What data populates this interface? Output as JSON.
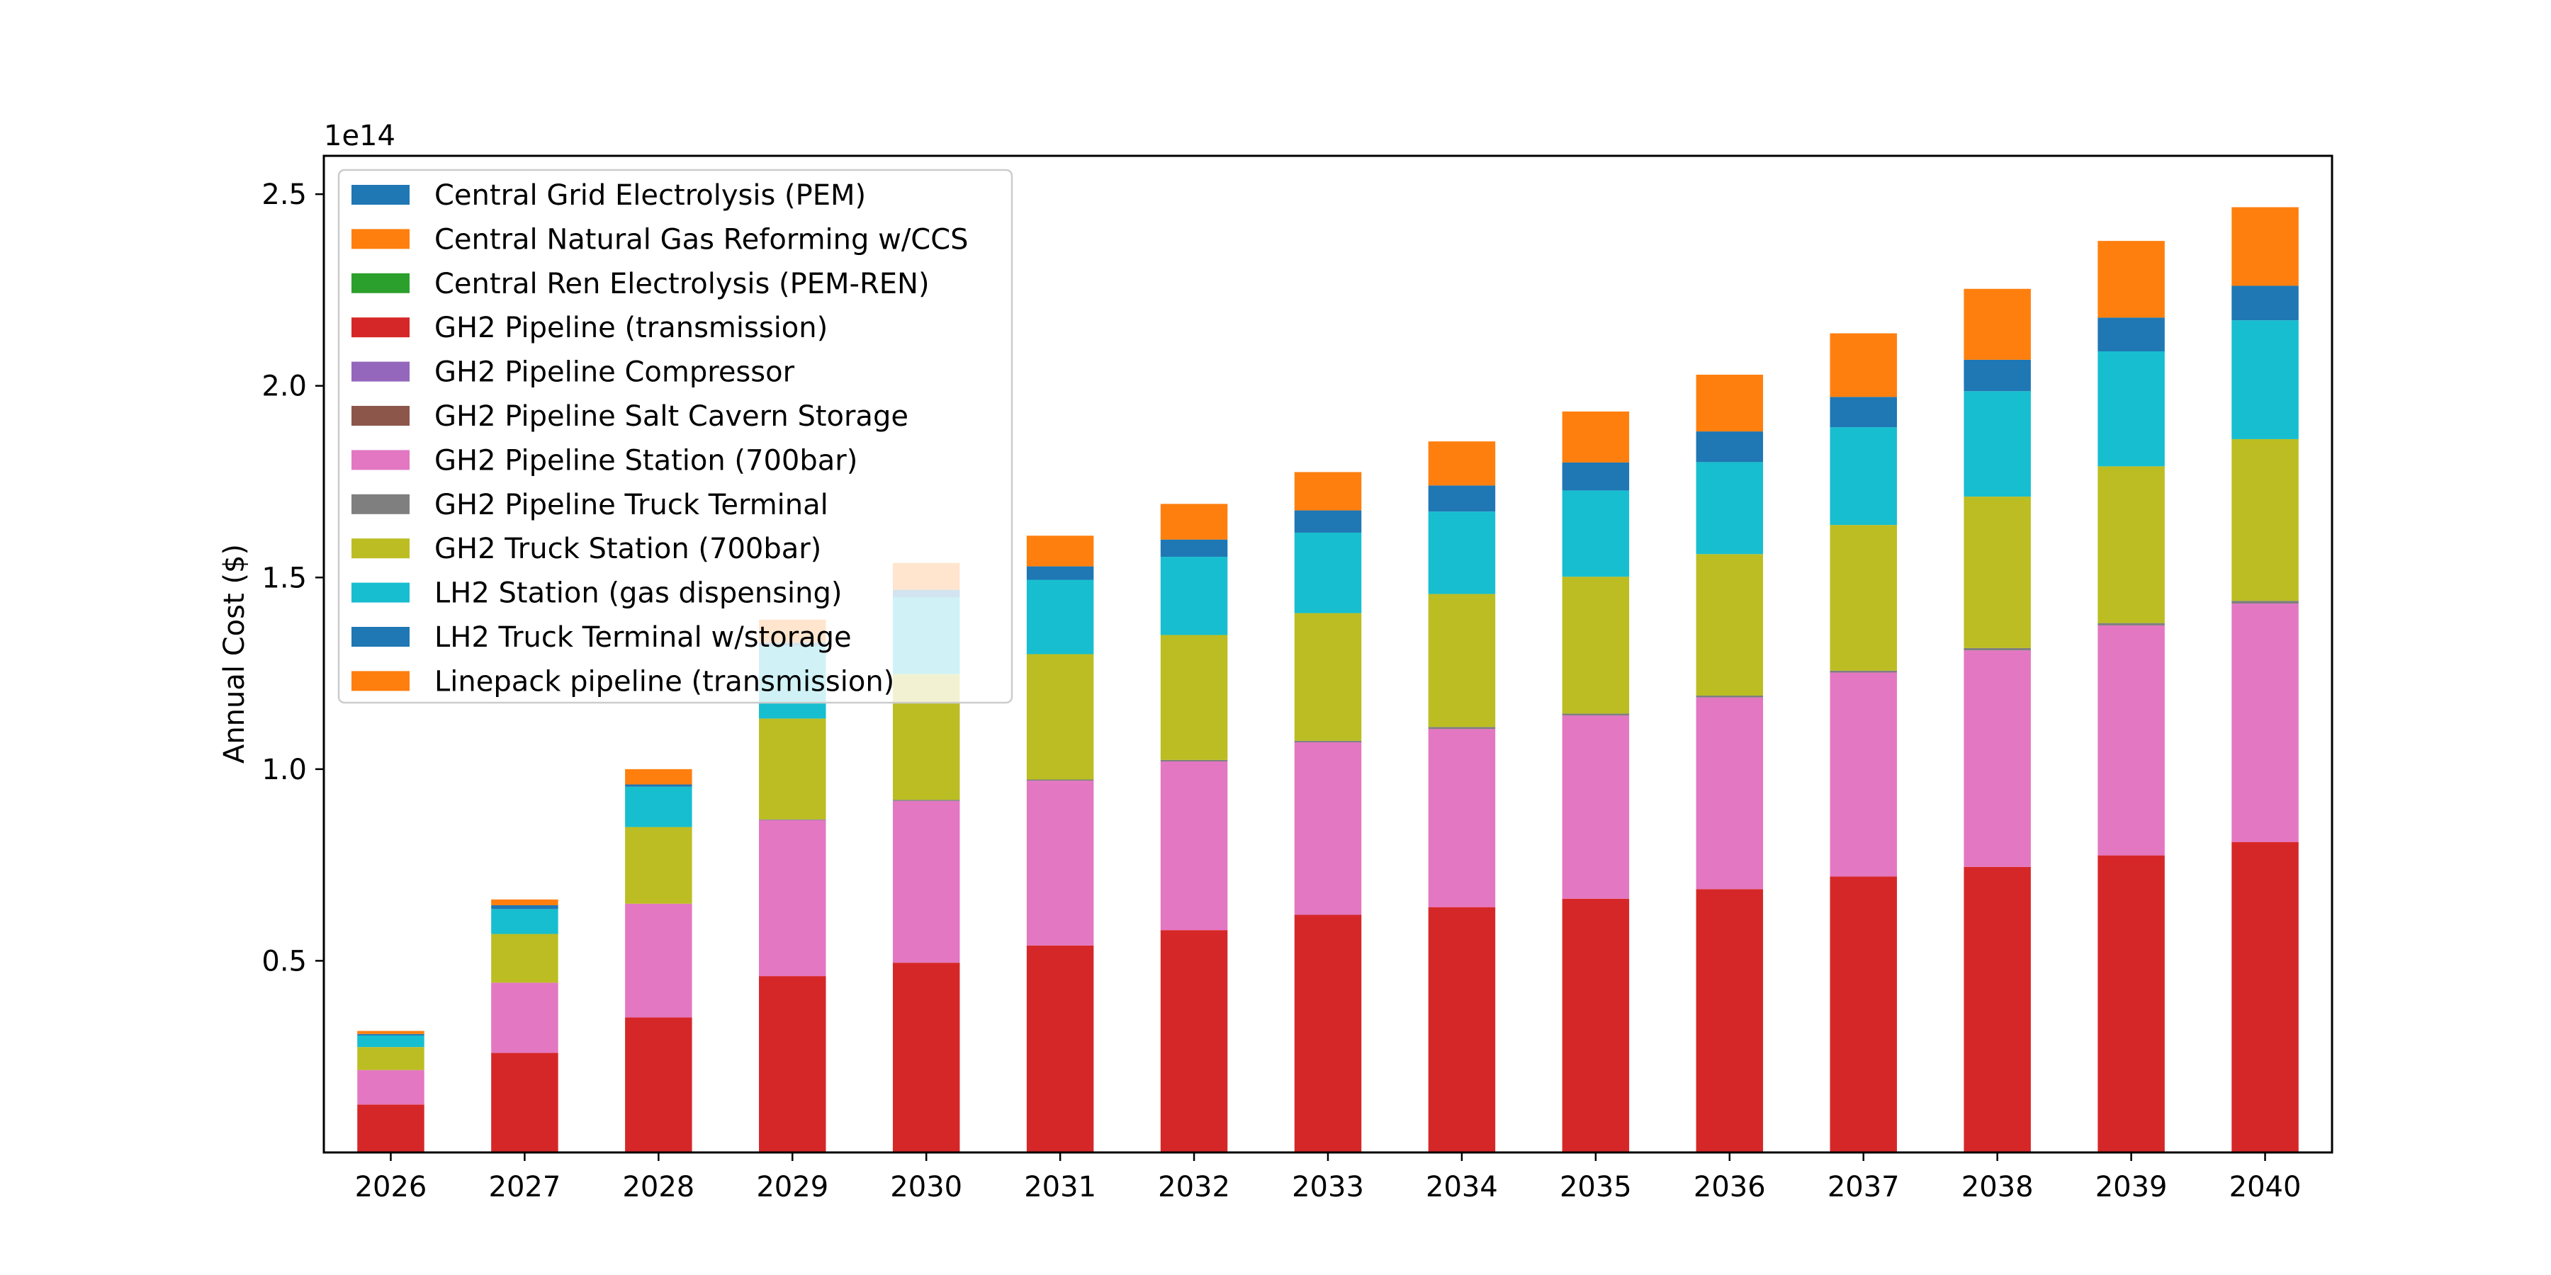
{
  "chart_data": {
    "type": "bar",
    "stacked": true,
    "title": "",
    "xlabel": "",
    "ylabel": "Annual Cost ($)",
    "y_offset_label": "1e14",
    "y_scale": 100000000000000.0,
    "ylim": [
      0,
      2.6
    ],
    "yticks": [
      0.5,
      1.0,
      1.5,
      2.0,
      2.5
    ],
    "ytick_labels": [
      "0.5",
      "1.0",
      "1.5",
      "2.0",
      "2.5"
    ],
    "grid": false,
    "legend_position": "upper-left",
    "categories": [
      "2026",
      "2027",
      "2028",
      "2029",
      "2030",
      "2031",
      "2032",
      "2033",
      "2034",
      "2035",
      "2036",
      "2037",
      "2038",
      "2039",
      "2040"
    ],
    "series": [
      {
        "name": "Central Grid Electrolysis (PEM)",
        "color": "#1f77b4",
        "values": [
          0,
          0,
          0,
          0,
          0,
          0,
          0,
          0,
          0,
          0,
          0,
          0,
          0,
          0,
          0
        ]
      },
      {
        "name": "Central Natural Gas Reforming w/CCS",
        "color": "#ff7f0e",
        "values": [
          0,
          0,
          0,
          0,
          0,
          0,
          0,
          0,
          0,
          0,
          0,
          0,
          0,
          0,
          0
        ]
      },
      {
        "name": "Central Ren Electrolysis (PEM-REN)",
        "color": "#2ca02c",
        "values": [
          0,
          0,
          0,
          0,
          0,
          0,
          0,
          0,
          0,
          0,
          0,
          0,
          0,
          0,
          0
        ]
      },
      {
        "name": "GH2 Pipeline (transmission)",
        "color": "#d62728",
        "values": [
          0.125,
          0.26,
          0.352,
          0.46,
          0.495,
          0.54,
          0.58,
          0.62,
          0.64,
          0.662,
          0.687,
          0.72,
          0.745,
          0.775,
          0.81
        ]
      },
      {
        "name": "GH2 Pipeline Compressor",
        "color": "#9467bd",
        "values": [
          0,
          0,
          0,
          0,
          0,
          0,
          0,
          0,
          0,
          0,
          0,
          0,
          0,
          0,
          0
        ]
      },
      {
        "name": "GH2 Pipeline Salt Cavern Storage",
        "color": "#8c564b",
        "values": [
          0,
          0,
          0,
          0,
          0,
          0,
          0,
          0,
          0,
          0,
          0,
          0,
          0,
          0,
          0
        ]
      },
      {
        "name": "GH2 Pipeline Station (700bar)",
        "color": "#e377c2",
        "values": [
          0.09,
          0.183,
          0.297,
          0.407,
          0.422,
          0.43,
          0.44,
          0.45,
          0.465,
          0.478,
          0.5,
          0.532,
          0.565,
          0.6,
          0.622
        ]
      },
      {
        "name": "GH2 Pipeline Truck Terminal",
        "color": "#7f7f7f",
        "values": [
          0,
          0,
          0,
          0.002,
          0.003,
          0.003,
          0.004,
          0.004,
          0.005,
          0.005,
          0.005,
          0.005,
          0.006,
          0.006,
          0.007
        ]
      },
      {
        "name": "GH2 Truck Station (700bar)",
        "color": "#bcbd22",
        "values": [
          0.06,
          0.127,
          0.2,
          0.263,
          0.328,
          0.327,
          0.326,
          0.333,
          0.347,
          0.357,
          0.369,
          0.38,
          0.395,
          0.409,
          0.422
        ]
      },
      {
        "name": "LH2 Station (gas dispensing)",
        "color": "#17becf",
        "values": [
          0.03,
          0.065,
          0.105,
          0.19,
          0.2,
          0.194,
          0.204,
          0.21,
          0.215,
          0.225,
          0.24,
          0.255,
          0.275,
          0.3,
          0.31
        ]
      },
      {
        "name": "LH2 Truck Terminal w/storage",
        "color": "#1f77b4",
        "values": [
          0.004,
          0.01,
          0.006,
          0.008,
          0.02,
          0.035,
          0.045,
          0.058,
          0.068,
          0.073,
          0.08,
          0.079,
          0.082,
          0.088,
          0.09
        ]
      },
      {
        "name": "Linepack pipeline (transmission)",
        "color": "#ff7f0e",
        "values": [
          0.008,
          0.015,
          0.04,
          0.06,
          0.07,
          0.08,
          0.093,
          0.1,
          0.115,
          0.133,
          0.148,
          0.166,
          0.185,
          0.2,
          0.205
        ]
      }
    ]
  }
}
